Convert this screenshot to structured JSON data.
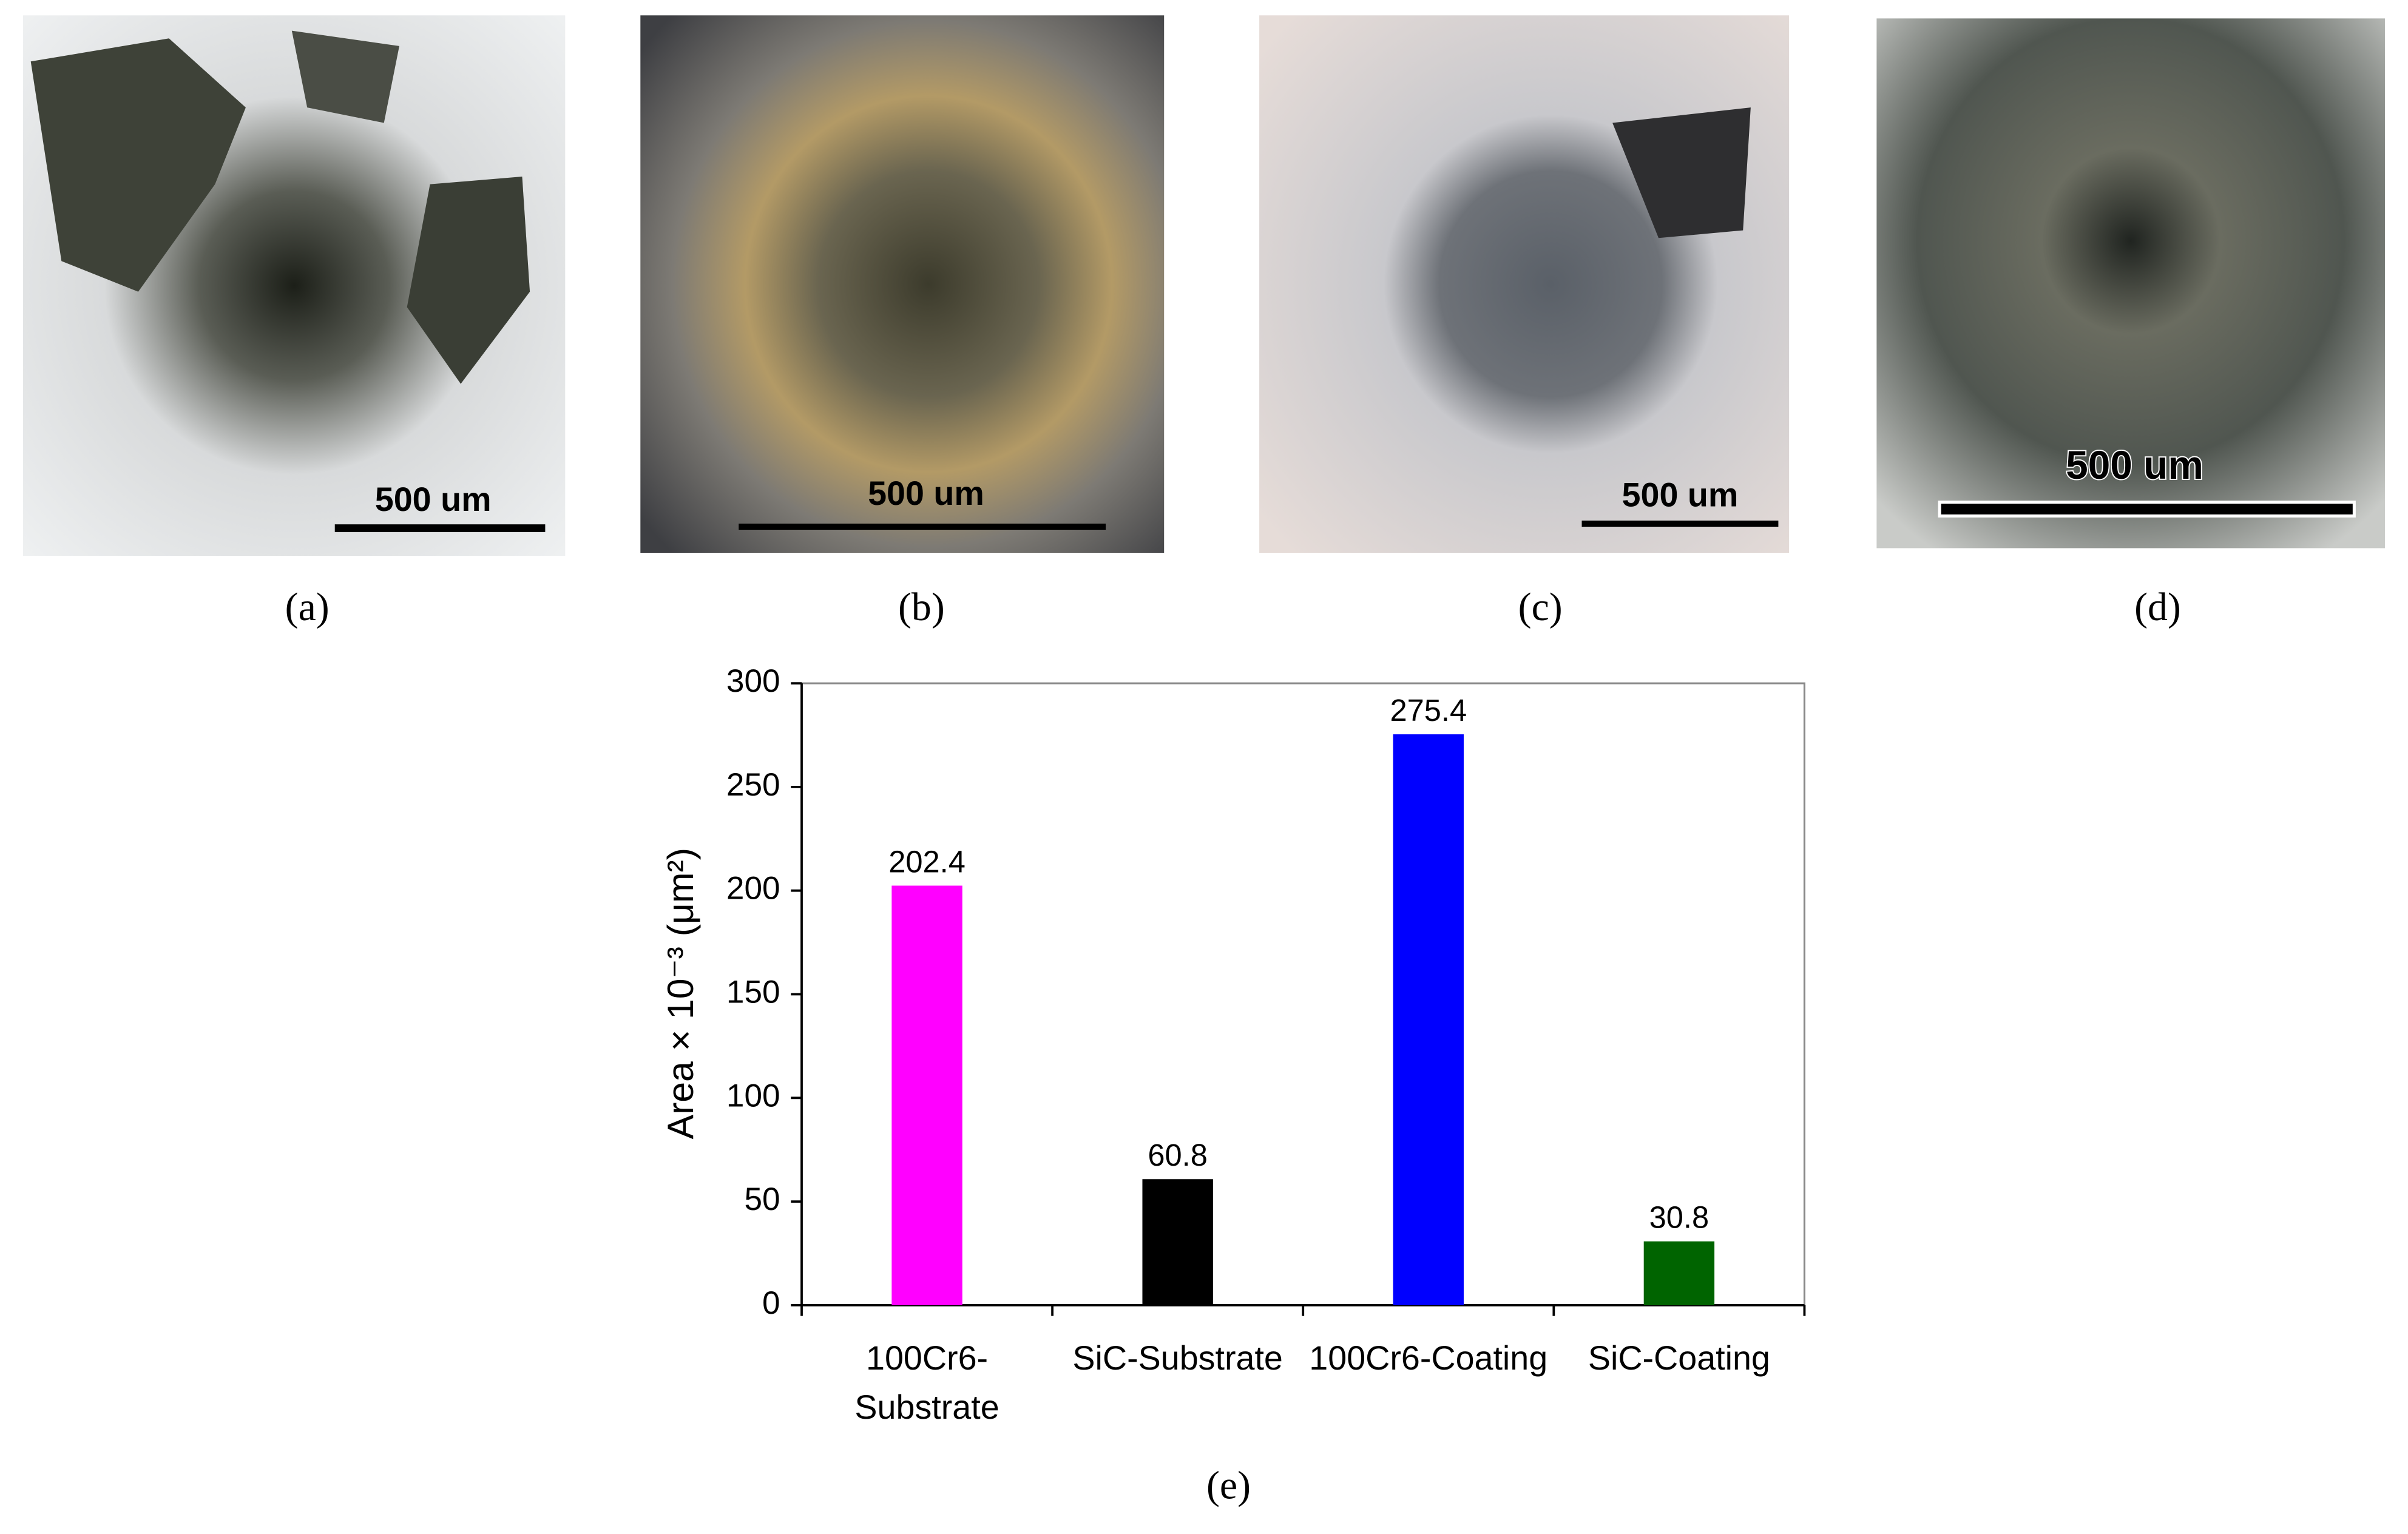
{
  "panels": [
    {
      "label": "(a)",
      "scale_bar": "500 um"
    },
    {
      "label": "(b)",
      "scale_bar": "500 um"
    },
    {
      "label": "(c)",
      "scale_bar": "500 um"
    },
    {
      "label": "(d)",
      "scale_bar": "500 um"
    }
  ],
  "chart_data": {
    "type": "bar",
    "caption": "(e)",
    "y_label": "Area × 10⁻³ (μm²)",
    "categories": [
      "100Cr6-Substrate",
      "SiC-Substrate",
      "100Cr6-Coating",
      "SiC-Coating"
    ],
    "values": [
      202.4,
      60.8,
      275.4,
      30.8
    ],
    "colors": [
      "#ff00ff",
      "#000000",
      "#0000ff",
      "#006400"
    ],
    "ylim": [
      0,
      300
    ],
    "yticks": [
      0,
      50,
      100,
      150,
      200,
      250,
      300
    ],
    "grid": false
  }
}
